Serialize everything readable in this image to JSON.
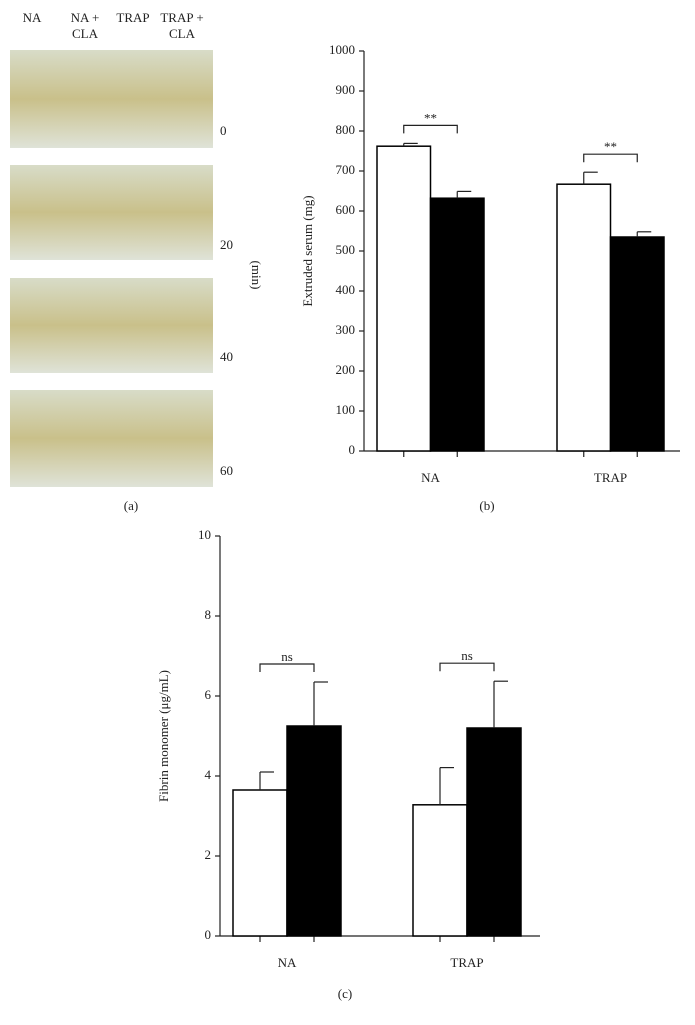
{
  "photo_panel": {
    "columns": [
      "NA",
      "NA +\nCLA",
      "TRAP",
      "TRAP +\nCLA"
    ],
    "times": [
      "0",
      "20",
      "40",
      "60"
    ],
    "time_unit": "(min)",
    "label": "(a)"
  },
  "chart_data": [
    {
      "type": "bar",
      "panel_label": "(b)",
      "y_label": "Extruded serum (mg)",
      "categories": [
        "NA",
        "TRAP"
      ],
      "series": [
        {
          "color": "#ffffff",
          "values": [
            762,
            667
          ],
          "errors": [
            7,
            30
          ]
        },
        {
          "color": "#000000",
          "values": [
            632,
            535
          ],
          "errors": [
            17,
            13
          ]
        }
      ],
      "annotations": [
        "**",
        "**"
      ],
      "ylim": [
        0,
        1000
      ],
      "yticks": [
        0,
        100,
        200,
        300,
        400,
        500,
        600,
        700,
        800,
        900,
        1000
      ]
    },
    {
      "type": "bar",
      "panel_label": "(c)",
      "y_label": "Fibrin monomer (μg/mL)",
      "categories": [
        "NA",
        "TRAP"
      ],
      "series": [
        {
          "color": "#ffffff",
          "values": [
            3.65,
            3.28
          ],
          "errors": [
            0.45,
            0.93
          ]
        },
        {
          "color": "#000000",
          "values": [
            5.25,
            5.2
          ],
          "errors": [
            1.1,
            1.17
          ]
        }
      ],
      "annotations": [
        "ns",
        "ns"
      ],
      "ylim": [
        0,
        10
      ],
      "yticks": [
        0,
        2,
        4,
        6,
        8,
        10
      ]
    }
  ]
}
